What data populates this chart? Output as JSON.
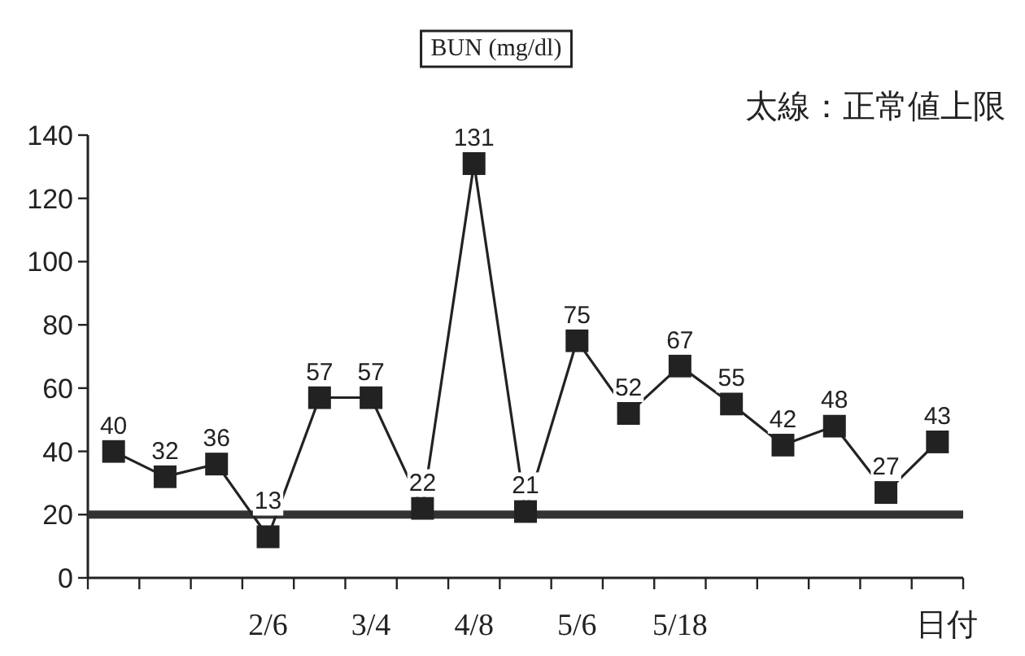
{
  "chart_data": {
    "type": "line",
    "title": "BUN (mg/dl)",
    "xlabel": "日付",
    "annotations": [
      "太線：正常値上限"
    ],
    "categories": [
      null,
      null,
      null,
      "2/6",
      null,
      "3/4",
      null,
      "4/8",
      null,
      "5/6",
      null,
      "5/18",
      null,
      null,
      null,
      null,
      null
    ],
    "series": [
      {
        "color": "#222222",
        "values": [
          40,
          32,
          36,
          13,
          57,
          57,
          22,
          131,
          21,
          75,
          52,
          67,
          55,
          42,
          48,
          27,
          43
        ]
      }
    ],
    "ylim": [
      0,
      140
    ],
    "yticks": [
      0,
      20,
      40,
      60,
      80,
      100,
      120,
      140
    ],
    "ref_lines": [
      {
        "axis": "y",
        "value": 20,
        "color": "#333333"
      }
    ],
    "data_labels": true,
    "marker": "square",
    "line_style": "solid"
  }
}
